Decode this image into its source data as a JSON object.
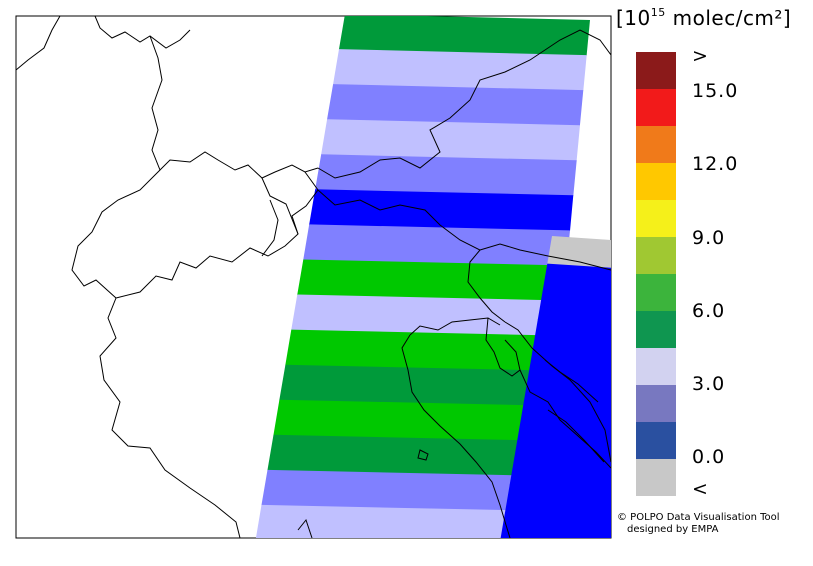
{
  "legend": {
    "unit_prefix": "[10",
    "unit_exp": "15",
    "unit_suffix": " molec/cm²]",
    "labels": [
      ">",
      "15.0",
      "12.0",
      "9.0",
      "6.0",
      "3.0",
      "0.0",
      "<"
    ],
    "colors": [
      "#8b1a1a",
      "#f21a1a",
      "#f07a1a",
      "#ffc800",
      "#f5f01a",
      "#a0c832",
      "#3cb43c",
      "#0f9650",
      "#d2d2f0",
      "#7878c0",
      "#2a50a0",
      "#c8c8c8"
    ]
  },
  "credit": {
    "line1": "© POLPO Data Visualisation Tool",
    "line2": "designed by EMPA"
  },
  "swath": {
    "palette": {
      "lav": "#c0c0ff",
      "med": "#8080ff",
      "blue": "#0000ff",
      "green": "#00c800",
      "dgreen": "#009a3a",
      "gray": "#c8c8c8"
    },
    "rows": [
      "dgreen",
      "lav",
      "med",
      "lav",
      "med",
      "blue",
      "med",
      "green",
      "lav",
      "green",
      "dgreen",
      "green",
      "dgreen",
      "med",
      "lav"
    ],
    "east_rows": [
      "gray",
      "blue",
      "blue",
      "blue",
      "blue",
      "blue",
      "blue",
      "blue",
      "blue",
      "blue",
      "blue"
    ]
  }
}
